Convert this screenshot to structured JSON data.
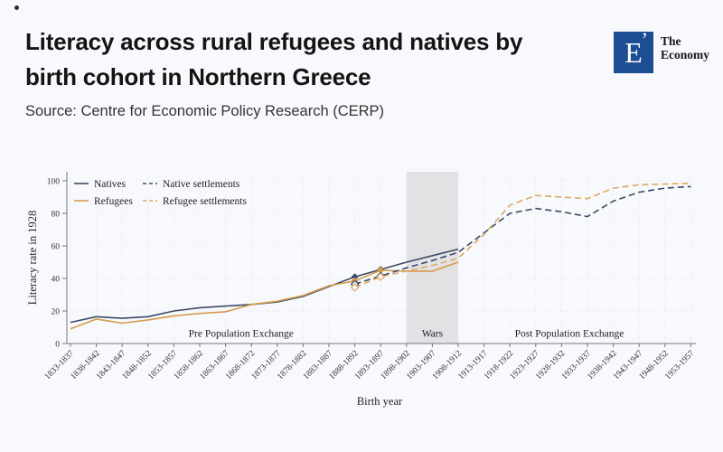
{
  "header": {
    "title_line1": "Literacy across rural refugees and natives by",
    "title_line2": "birth cohort in Northern Greece",
    "source": "Source: Centre for Economic Policy Research (CERP)",
    "logo": {
      "letter": "E",
      "mark": "’",
      "text_line1": "The",
      "text_line2": "Economy",
      "square_color": "#1d4e94"
    }
  },
  "chart_data": {
    "type": "line",
    "title": "Literacy across rural refugees and natives by birth cohort in Northern Greece",
    "xlabel": "Birth year",
    "ylabel": "Literacy rate in 1928",
    "ylim": [
      0,
      100
    ],
    "yticks": [
      0,
      20,
      40,
      60,
      80,
      100
    ],
    "grid": "dotted",
    "legend_position": "top-left",
    "categories": [
      "1833-1837",
      "1838-1842",
      "1843-1847",
      "1848-1852",
      "1853-1857",
      "1858-1862",
      "1863-1867",
      "1868-1872",
      "1873-1877",
      "1878-1882",
      "1883-1887",
      "1888-1892",
      "1893-1897",
      "1898-1902",
      "1903-1907",
      "1908-1912",
      "1913-1917",
      "1918-1922",
      "1923-1927",
      "1928-1932",
      "1933-1937",
      "1938-1942",
      "1943-1947",
      "1948-1952",
      "1953-1957"
    ],
    "series": [
      {
        "name": "Natives",
        "color": "#3d4a66",
        "style": "solid",
        "marker": "diamond-filled",
        "marker_indices": [
          11,
          12
        ],
        "values": [
          13,
          16.5,
          15.5,
          16.5,
          20,
          22,
          23,
          24,
          25.5,
          29,
          35,
          41,
          45.5,
          50,
          54,
          58,
          null,
          null,
          null,
          null,
          null,
          null,
          null,
          null,
          null
        ]
      },
      {
        "name": "Refugees",
        "color": "#d69b4d",
        "style": "solid",
        "marker": "diamond-filled",
        "marker_indices": [
          11,
          12
        ],
        "values": [
          9,
          15,
          12.5,
          14.5,
          17,
          18.5,
          19.5,
          24,
          26,
          29.5,
          35.5,
          38.5,
          45,
          44.5,
          44.5,
          50,
          null,
          null,
          null,
          null,
          null,
          null,
          null,
          null,
          null
        ]
      },
      {
        "name": "Native settlements",
        "color": "#3d4a66",
        "style": "dashed",
        "marker": "diamond-hollow",
        "marker_indices": [
          11,
          12
        ],
        "values": [
          null,
          null,
          null,
          null,
          null,
          null,
          null,
          null,
          null,
          null,
          null,
          36.5,
          41.5,
          46.5,
          51,
          56,
          68,
          80,
          83,
          81,
          78,
          87.5,
          93,
          95.5,
          96.5
        ]
      },
      {
        "name": "Refugee settlements",
        "color": "#dcab62",
        "style": "dashed",
        "marker": "diamond-hollow",
        "marker_indices": [
          11,
          12
        ],
        "values": [
          null,
          null,
          null,
          null,
          null,
          null,
          null,
          null,
          null,
          null,
          null,
          34.5,
          41,
          44.5,
          48,
          52.5,
          67,
          85,
          91,
          90,
          89,
          95.5,
          97.5,
          98,
          98.5
        ]
      }
    ],
    "band": {
      "label": "Wars",
      "from": "1898-1902",
      "to": "1908-1912",
      "color": "#e2e2e5"
    },
    "annotations": [
      {
        "text": "Pre Population Exchange",
        "xi": 6.6,
        "v": 6.5
      },
      {
        "text": "Wars",
        "xi": 14,
        "v": 6.5
      },
      {
        "text": "Post Population Exchange",
        "xi": 19.3,
        "v": 6.5
      }
    ]
  }
}
